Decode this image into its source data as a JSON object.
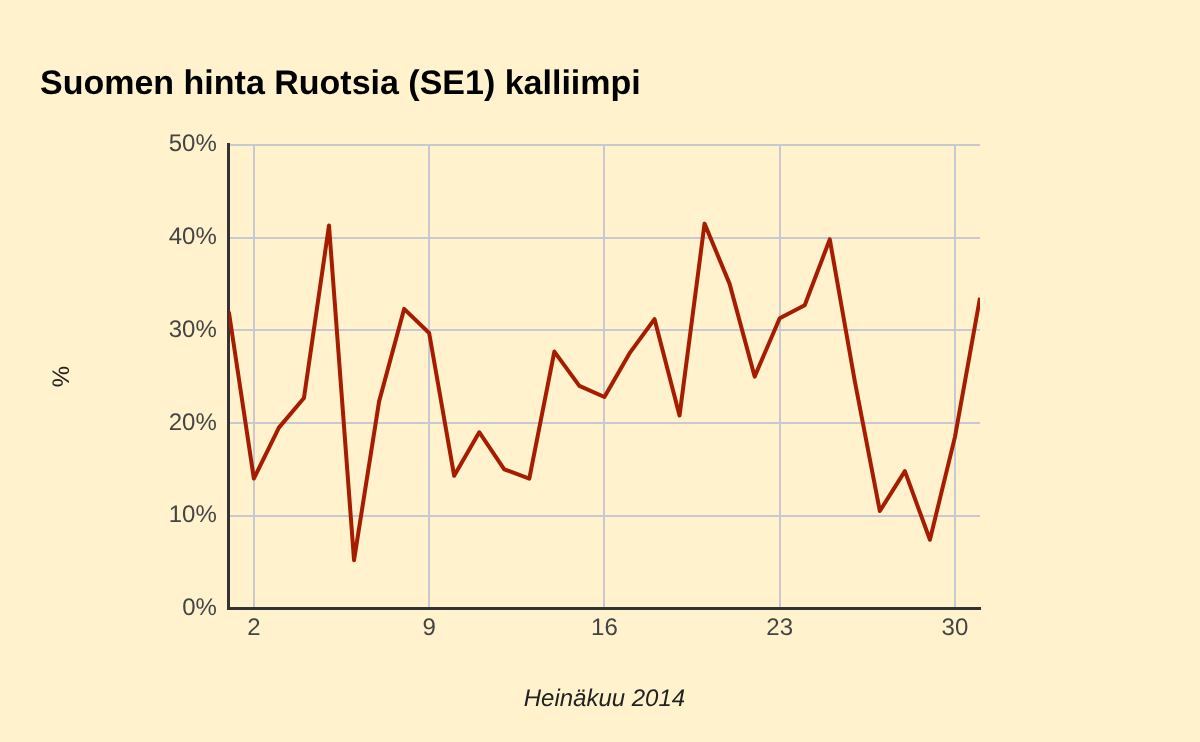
{
  "chart_data": {
    "type": "line",
    "title": "Suomen hinta Ruotsia (SE1) kalliimpi",
    "xlabel": "Heinäkuu 2014",
    "ylabel": "%",
    "x": [
      1,
      2,
      3,
      4,
      5,
      6,
      7,
      8,
      9,
      10,
      11,
      12,
      13,
      14,
      15,
      16,
      17,
      18,
      19,
      20,
      21,
      22,
      23,
      24,
      25,
      26,
      27,
      28,
      29,
      30,
      31
    ],
    "series": [
      {
        "color": "#a61c00",
        "values": [
          32,
          14,
          19.5,
          22.7,
          41.3,
          5.2,
          22.3,
          32.3,
          29.7,
          14.3,
          19,
          15,
          14,
          27.7,
          24,
          22.8,
          27.5,
          31.2,
          20.8,
          41.5,
          35,
          25,
          31.3,
          32.7,
          39.8,
          24.5,
          10.5,
          14.8,
          7.4,
          18.5,
          33.5
        ]
      }
    ],
    "xlim": [
      1,
      31
    ],
    "xticks": [
      2,
      9,
      16,
      23,
      30
    ],
    "ylim": [
      0,
      50
    ],
    "yticks": [
      {
        "value": 0,
        "label": "0%"
      },
      {
        "value": 10,
        "label": "10%"
      },
      {
        "value": 20,
        "label": "20%"
      },
      {
        "value": 30,
        "label": "30%"
      },
      {
        "value": 40,
        "label": "40%"
      },
      {
        "value": 50,
        "label": "50%"
      }
    ],
    "grid": true,
    "legend": false,
    "marker": "none",
    "line_style": "solid"
  }
}
